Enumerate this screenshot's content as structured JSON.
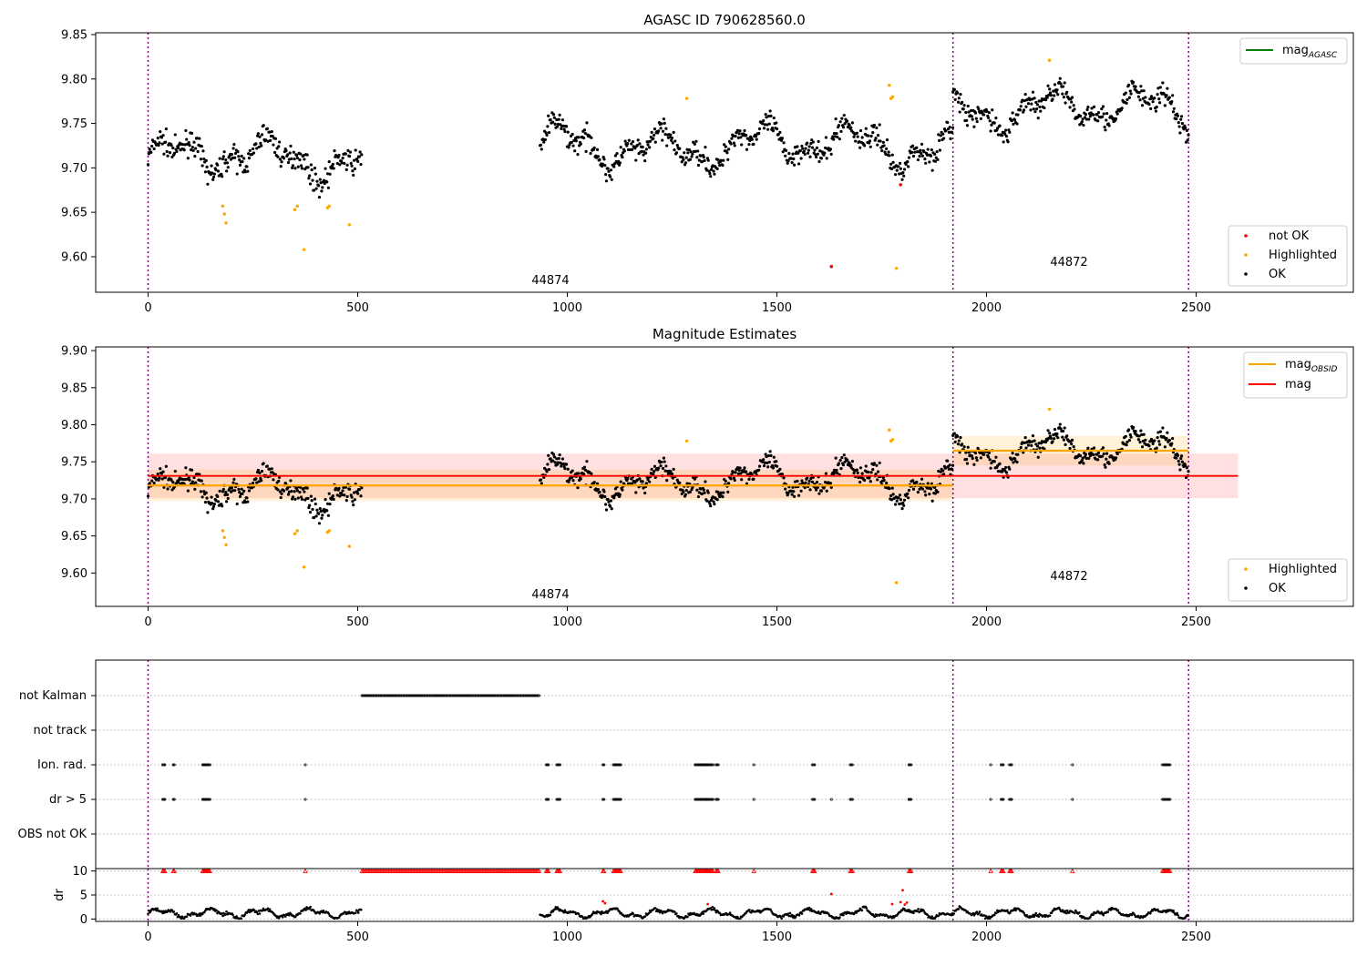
{
  "chart_data": [
    {
      "panel": "top",
      "type": "scatter",
      "title": "AGASC ID 790628560.0",
      "xlim": [
        -125,
        2875
      ],
      "ylim": [
        9.56,
        9.852
      ],
      "x_ticks": [
        0,
        500,
        1000,
        1500,
        2000,
        2500
      ],
      "y_ticks": [
        9.6,
        9.65,
        9.7,
        9.75,
        9.8,
        9.85
      ],
      "y_tick_labels": [
        "9.60",
        "9.65",
        "9.70",
        "9.75",
        "9.80",
        "9.85"
      ],
      "obsid_boundaries": [
        0,
        1920,
        2482
      ],
      "obsid_labels": [
        {
          "text": "44874",
          "x": 960,
          "y": 9.567
        },
        {
          "text": "44872",
          "x": 2200,
          "y": 9.588
        }
      ],
      "segments": [
        {
          "x0": 0,
          "x1": 510,
          "base": 9.71
        },
        {
          "x0": 935,
          "x1": 1920,
          "base": 9.725
        },
        {
          "x0": 1920,
          "x1": 2482,
          "base": 9.765
        }
      ],
      "highlighted_points": [
        [
          178,
          9.657
        ],
        [
          182,
          9.648
        ],
        [
          186,
          9.638
        ],
        [
          350,
          9.653
        ],
        [
          356,
          9.657
        ],
        [
          372,
          9.608
        ],
        [
          428,
          9.655
        ],
        [
          432,
          9.657
        ],
        [
          480,
          9.636
        ],
        [
          1285,
          9.778
        ],
        [
          1768,
          9.793
        ],
        [
          1772,
          9.778
        ],
        [
          1776,
          9.78
        ],
        [
          1785,
          9.587
        ],
        [
          2150,
          9.821
        ]
      ],
      "not_ok_points": [
        [
          1630,
          9.589
        ],
        [
          1795,
          9.681
        ]
      ],
      "legend_upper": [
        "mag_AGASC"
      ],
      "legend_lower": [
        {
          "label": "not OK",
          "color": "#ff0000"
        },
        {
          "label": "Highlighted",
          "color": "#ffa500"
        },
        {
          "label": "OK",
          "color": "#000000"
        }
      ]
    },
    {
      "panel": "middle",
      "type": "scatter",
      "title": "Magnitude Estimates",
      "xlim": [
        -125,
        2875
      ],
      "ylim": [
        9.555,
        9.905
      ],
      "x_ticks": [
        0,
        500,
        1000,
        1500,
        2000,
        2500
      ],
      "y_ticks": [
        9.6,
        9.65,
        9.7,
        9.75,
        9.8,
        9.85,
        9.9
      ],
      "y_tick_labels": [
        "9.60",
        "9.65",
        "9.70",
        "9.75",
        "9.80",
        "9.85",
        "9.90"
      ],
      "mag": {
        "value": 9.731,
        "band": [
          9.701,
          9.761
        ],
        "x0": 0,
        "x1": 2600
      },
      "mag_obsid": [
        {
          "x0": 0,
          "x1": 1920,
          "value": 9.718,
          "band": [
            9.697,
            9.739
          ]
        },
        {
          "x0": 1920,
          "x1": 2482,
          "value": 9.765,
          "band": [
            9.745,
            9.785
          ]
        }
      ],
      "legend_upper": [
        {
          "label": "mag_OBSID",
          "color": "#ffa500"
        },
        {
          "label": "mag",
          "color": "#ff0000"
        }
      ],
      "legend_lower": [
        {
          "label": "Highlighted",
          "color": "#ffa500"
        },
        {
          "label": "OK",
          "color": "#000000"
        }
      ]
    },
    {
      "panel": "flags",
      "type": "scatter",
      "xlim": [
        -125,
        2875
      ],
      "y_tick_labels": [
        "not Kalman",
        "not track",
        "Ion. rad.",
        "dr > 5",
        "OBS not OK"
      ],
      "not_kalman_range": [
        510,
        935
      ],
      "flag_clusters": [
        [
          35,
          3
        ],
        [
          60,
          2
        ],
        [
          130,
          8
        ],
        [
          375,
          1
        ],
        [
          950,
          3
        ],
        [
          975,
          4
        ],
        [
          1085,
          2
        ],
        [
          1110,
          8
        ],
        [
          1305,
          12
        ],
        [
          1330,
          8
        ],
        [
          1355,
          3
        ],
        [
          1445,
          1
        ],
        [
          1585,
          3
        ],
        [
          1675,
          3
        ],
        [
          1815,
          3
        ],
        [
          2010,
          1
        ],
        [
          2035,
          3
        ],
        [
          2055,
          3
        ],
        [
          2205,
          1
        ],
        [
          2420,
          8
        ]
      ],
      "dr_extra_points": [
        1630,
        1815
      ]
    },
    {
      "panel": "dr",
      "type": "scatter",
      "ylabel": "dr",
      "xlim": [
        -125,
        2875
      ],
      "ylim": [
        -0.5,
        10.5
      ],
      "y_ticks": [
        0,
        5,
        10
      ],
      "x_ticks": [
        0,
        500,
        1000,
        1500,
        2000,
        2500
      ],
      "capped_value": 10,
      "outliers": [
        [
          1085,
          3.7
        ],
        [
          1090,
          3.3
        ],
        [
          1335,
          3.1
        ],
        [
          1630,
          5.2
        ],
        [
          1775,
          3.1
        ],
        [
          1795,
          3.5
        ],
        [
          1800,
          6.0
        ],
        [
          1805,
          3.0
        ],
        [
          1810,
          3.4
        ]
      ]
    }
  ]
}
